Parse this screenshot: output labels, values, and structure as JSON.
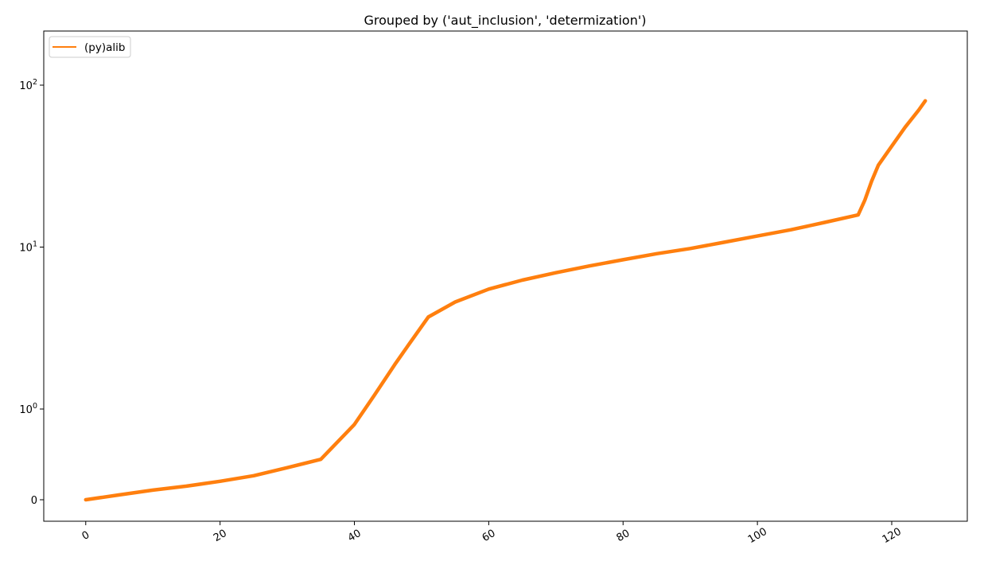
{
  "chart_data": {
    "type": "line",
    "title": "Grouped by ('aut_inclusion', 'determization')",
    "xlabel": "",
    "ylabel": "",
    "yscale": "symlog",
    "xlim": [
      -6.25,
      131.25
    ],
    "x_ticks": [
      0,
      20,
      40,
      60,
      80,
      100,
      120
    ],
    "y_ticks": [
      {
        "value": 0,
        "label": "0"
      },
      {
        "value": 1,
        "base": "10",
        "exp": "0"
      },
      {
        "value": 10,
        "base": "10",
        "exp": "1"
      },
      {
        "value": 100,
        "base": "10",
        "exp": "2"
      }
    ],
    "grid": false,
    "legend": {
      "placement": "upper-left"
    },
    "series": [
      {
        "name": "(py)alib",
        "color": "#ff7f0e",
        "x": [
          0,
          5,
          10,
          15,
          20,
          25,
          30,
          35,
          40,
          43,
          46,
          48,
          51,
          55,
          60,
          65,
          70,
          75,
          80,
          85,
          90,
          95,
          100,
          105,
          110,
          115,
          116,
          117,
          118,
          120,
          122,
          124,
          125
        ],
        "y": [
          0,
          0.02,
          0.05,
          0.08,
          0.12,
          0.17,
          0.25,
          0.34,
          0.78,
          1.22,
          1.88,
          2.47,
          3.7,
          4.58,
          5.5,
          6.25,
          6.95,
          7.65,
          8.35,
          9.1,
          9.8,
          10.7,
          11.7,
          12.8,
          14.2,
          15.8,
          19.5,
          25.5,
          32,
          42,
          55,
          70,
          80
        ]
      }
    ]
  }
}
